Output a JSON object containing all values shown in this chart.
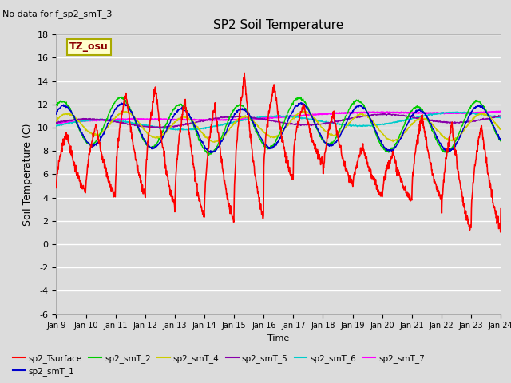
{
  "title": "SP2 Soil Temperature",
  "subtitle": "No data for f_sp2_smT_3",
  "ylabel": "Soil Temperature (C)",
  "xlabel": "Time",
  "tz_label": "TZ_osu",
  "ylim": [
    -6,
    18
  ],
  "yticks": [
    -6,
    -4,
    -2,
    0,
    2,
    4,
    6,
    8,
    10,
    12,
    14,
    16,
    18
  ],
  "xtick_labels": [
    "Jan 9",
    "Jan 10",
    "Jan 11",
    "Jan 12",
    "Jan 13",
    "Jan 14",
    "Jan 15",
    "Jan 16",
    "Jan 17",
    "Jan 18",
    "Jan 19",
    "Jan 20",
    "Jan 21",
    "Jan 22",
    "Jan 23",
    "Jan 24"
  ],
  "bg_color": "#dcdcdc",
  "grid_color": "#ffffff",
  "legend_entries": [
    {
      "label": "sp2_Tsurface",
      "color": "#ff0000"
    },
    {
      "label": "sp2_smT_1",
      "color": "#0000cc"
    },
    {
      "label": "sp2_smT_2",
      "color": "#00cc00"
    },
    {
      "label": "sp2_smT_4",
      "color": "#cccc00"
    },
    {
      "label": "sp2_smT_5",
      "color": "#8800aa"
    },
    {
      "label": "sp2_smT_6",
      "color": "#00cccc"
    },
    {
      "label": "sp2_smT_7",
      "color": "#ff00ff"
    }
  ]
}
